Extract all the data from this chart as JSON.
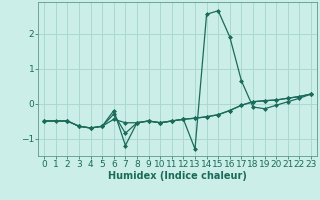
{
  "xlabel": "Humidex (Indice chaleur)",
  "background_color": "#cceee8",
  "grid_color": "#aad8d0",
  "line_color": "#1a6b5a",
  "xlim": [
    -0.5,
    23.5
  ],
  "ylim": [
    -1.5,
    2.9
  ],
  "yticks": [
    -1,
    0,
    1,
    2
  ],
  "xticks": [
    0,
    1,
    2,
    3,
    4,
    5,
    6,
    7,
    8,
    9,
    10,
    11,
    12,
    13,
    14,
    15,
    16,
    17,
    18,
    19,
    20,
    21,
    22,
    23
  ],
  "line1_x": [
    0,
    1,
    2,
    3,
    4,
    5,
    6,
    7,
    8,
    9,
    10,
    11,
    12,
    13,
    14,
    15,
    16,
    17,
    18,
    19,
    20,
    21,
    22,
    23
  ],
  "line1_y": [
    -0.5,
    -0.5,
    -0.5,
    -0.65,
    -0.7,
    -0.65,
    -0.2,
    -1.2,
    -0.55,
    -0.5,
    -0.55,
    -0.5,
    -0.45,
    -1.3,
    2.55,
    2.65,
    1.9,
    0.65,
    -0.1,
    -0.15,
    -0.05,
    0.05,
    0.15,
    0.27
  ],
  "line2_x": [
    0,
    2,
    3,
    4,
    5,
    6,
    7,
    8,
    9,
    10,
    11,
    12,
    13,
    14,
    15,
    16,
    17,
    18,
    19,
    20,
    21,
    22,
    23
  ],
  "line2_y": [
    -0.5,
    -0.5,
    -0.65,
    -0.7,
    -0.65,
    -0.45,
    -0.55,
    -0.55,
    -0.5,
    -0.55,
    -0.5,
    -0.45,
    -0.42,
    -0.38,
    -0.32,
    -0.2,
    -0.05,
    0.05,
    0.08,
    0.1,
    0.15,
    0.2,
    0.27
  ],
  "line3_x": [
    0,
    2,
    3,
    4,
    5,
    6,
    7,
    8,
    9,
    10,
    11,
    12,
    13,
    14,
    15,
    16,
    17,
    18,
    19,
    20,
    21,
    22,
    23
  ],
  "line3_y": [
    -0.5,
    -0.5,
    -0.65,
    -0.7,
    -0.65,
    -0.3,
    -0.85,
    -0.55,
    -0.5,
    -0.55,
    -0.5,
    -0.45,
    -0.42,
    -0.38,
    -0.32,
    -0.2,
    -0.05,
    0.05,
    0.08,
    0.1,
    0.15,
    0.2,
    0.27
  ],
  "font_size_label": 7,
  "font_size_tick": 6.5
}
